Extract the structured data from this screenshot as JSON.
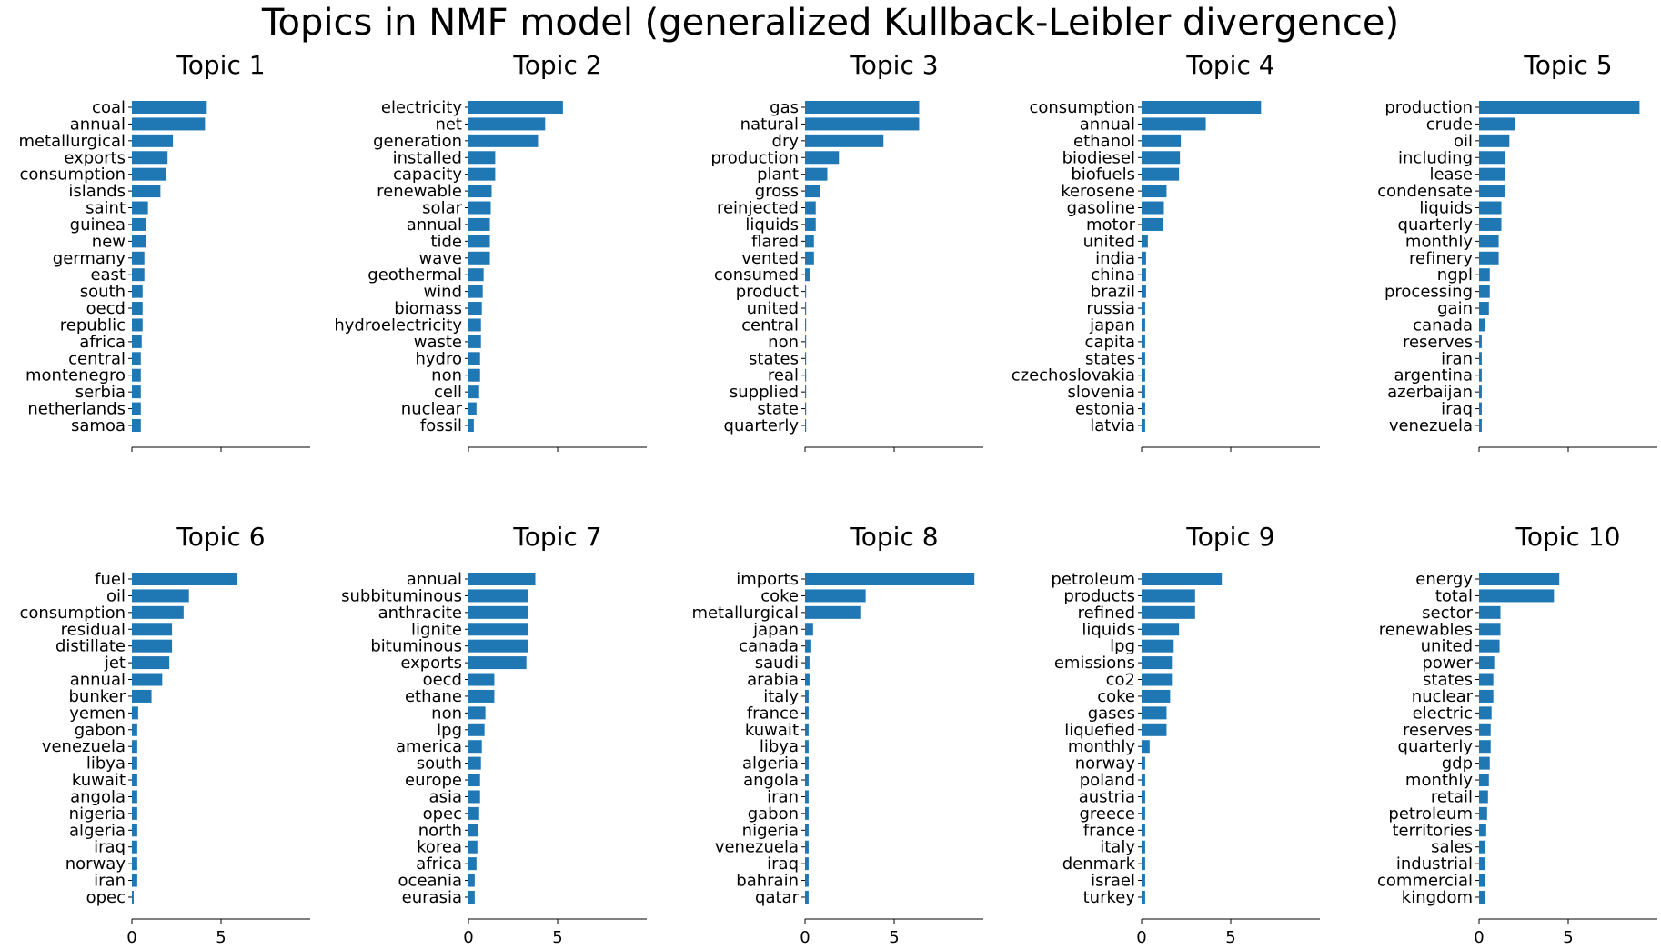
{
  "chart_data": {
    "type": "bar",
    "title": "Topics in NMF model (generalized Kullback-Leibler divergence)",
    "orientation": "horizontal",
    "xlim": [
      0,
      10
    ],
    "x_ticks": [
      0,
      5
    ],
    "bar_color": "#1f77b4",
    "panels": [
      {
        "title": "Topic 1",
        "categories": [
          "coal",
          "annual",
          "metallurgical",
          "exports",
          "consumption",
          "islands",
          "saint",
          "guinea",
          "new",
          "germany",
          "east",
          "south",
          "oecd",
          "republic",
          "africa",
          "central",
          "montenegro",
          "serbia",
          "netherlands",
          "samoa"
        ],
        "values": [
          4.2,
          4.1,
          2.3,
          2.0,
          1.9,
          1.6,
          0.9,
          0.8,
          0.8,
          0.7,
          0.7,
          0.6,
          0.6,
          0.6,
          0.55,
          0.5,
          0.5,
          0.5,
          0.5,
          0.5
        ]
      },
      {
        "title": "Topic 2",
        "categories": [
          "electricity",
          "net",
          "generation",
          "installed",
          "capacity",
          "renewable",
          "solar",
          "annual",
          "tide",
          "wave",
          "geothermal",
          "wind",
          "biomass",
          "hydroelectricity",
          "waste",
          "hydro",
          "non",
          "cell",
          "nuclear",
          "fossil"
        ],
        "values": [
          5.3,
          4.3,
          3.9,
          1.5,
          1.5,
          1.3,
          1.25,
          1.2,
          1.2,
          1.2,
          0.85,
          0.8,
          0.75,
          0.7,
          0.7,
          0.65,
          0.65,
          0.6,
          0.45,
          0.3
        ]
      },
      {
        "title": "Topic 3",
        "categories": [
          "gas",
          "natural",
          "dry",
          "production",
          "plant",
          "gross",
          "reinjected",
          "liquids",
          "flared",
          "vented",
          "consumed",
          "product",
          "united",
          "central",
          "non",
          "states",
          "real",
          "supplied",
          "state",
          "quarterly"
        ],
        "values": [
          6.4,
          6.4,
          4.4,
          1.9,
          1.25,
          0.85,
          0.6,
          0.6,
          0.5,
          0.5,
          0.3,
          0.06,
          0.06,
          0.06,
          0.06,
          0.06,
          0.06,
          0.06,
          0.06,
          0.06
        ]
      },
      {
        "title": "Topic 4",
        "categories": [
          "consumption",
          "annual",
          "ethanol",
          "biodiesel",
          "biofuels",
          "kerosene",
          "gasoline",
          "motor",
          "united",
          "india",
          "china",
          "brazil",
          "russia",
          "japan",
          "capita",
          "states",
          "czechoslovakia",
          "slovenia",
          "estonia",
          "latvia"
        ],
        "values": [
          6.7,
          3.6,
          2.2,
          2.15,
          2.1,
          1.4,
          1.25,
          1.2,
          0.35,
          0.25,
          0.25,
          0.25,
          0.2,
          0.2,
          0.2,
          0.2,
          0.2,
          0.2,
          0.2,
          0.2
        ]
      },
      {
        "title": "Topic 5",
        "categories": [
          "production",
          "crude",
          "oil",
          "including",
          "lease",
          "condensate",
          "liquids",
          "quarterly",
          "monthly",
          "refinery",
          "ngpl",
          "processing",
          "gain",
          "canada",
          "reserves",
          "iran",
          "argentina",
          "azerbaijan",
          "iraq",
          "venezuela"
        ],
        "values": [
          9.0,
          2.0,
          1.7,
          1.45,
          1.45,
          1.45,
          1.25,
          1.25,
          1.1,
          1.1,
          0.6,
          0.6,
          0.55,
          0.35,
          0.15,
          0.15,
          0.15,
          0.15,
          0.15,
          0.15
        ]
      },
      {
        "title": "Topic 6",
        "categories": [
          "fuel",
          "oil",
          "consumption",
          "residual",
          "distillate",
          "jet",
          "annual",
          "bunker",
          "yemen",
          "gabon",
          "venezuela",
          "libya",
          "kuwait",
          "angola",
          "nigeria",
          "algeria",
          "iraq",
          "norway",
          "iran",
          "opec"
        ],
        "values": [
          5.9,
          3.2,
          2.9,
          2.25,
          2.25,
          2.1,
          1.7,
          1.1,
          0.35,
          0.3,
          0.3,
          0.3,
          0.3,
          0.3,
          0.3,
          0.3,
          0.3,
          0.3,
          0.3,
          0.1
        ]
      },
      {
        "title": "Topic 7",
        "categories": [
          "annual",
          "subbituminous",
          "anthracite",
          "lignite",
          "bituminous",
          "exports",
          "oecd",
          "ethane",
          "non",
          "lpg",
          "america",
          "south",
          "europe",
          "asia",
          "opec",
          "north",
          "korea",
          "africa",
          "oceania",
          "eurasia"
        ],
        "values": [
          3.75,
          3.35,
          3.35,
          3.35,
          3.35,
          3.25,
          1.45,
          1.45,
          0.95,
          0.9,
          0.75,
          0.7,
          0.65,
          0.65,
          0.6,
          0.55,
          0.5,
          0.45,
          0.35,
          0.35
        ]
      },
      {
        "title": "Topic 8",
        "categories": [
          "imports",
          "coke",
          "metallurgical",
          "japan",
          "canada",
          "saudi",
          "arabia",
          "italy",
          "france",
          "kuwait",
          "libya",
          "algeria",
          "angola",
          "iran",
          "gabon",
          "nigeria",
          "venezuela",
          "iraq",
          "bahrain",
          "qatar"
        ],
        "values": [
          9.5,
          3.4,
          3.1,
          0.45,
          0.35,
          0.25,
          0.25,
          0.2,
          0.2,
          0.2,
          0.2,
          0.2,
          0.2,
          0.2,
          0.2,
          0.2,
          0.2,
          0.2,
          0.2,
          0.2
        ]
      },
      {
        "title": "Topic 9",
        "categories": [
          "petroleum",
          "products",
          "refined",
          "liquids",
          "lpg",
          "emissions",
          "co2",
          "coke",
          "gases",
          "liquefied",
          "monthly",
          "norway",
          "poland",
          "austria",
          "greece",
          "france",
          "italy",
          "denmark",
          "israel",
          "turkey"
        ],
        "values": [
          4.5,
          3.0,
          3.0,
          2.1,
          1.8,
          1.7,
          1.7,
          1.6,
          1.4,
          1.4,
          0.45,
          0.2,
          0.2,
          0.2,
          0.2,
          0.2,
          0.2,
          0.2,
          0.2,
          0.2
        ]
      },
      {
        "title": "Topic 10",
        "categories": [
          "energy",
          "total",
          "sector",
          "renewables",
          "united",
          "power",
          "states",
          "nuclear",
          "electric",
          "reserves",
          "quarterly",
          "gdp",
          "monthly",
          "retail",
          "petroleum",
          "territories",
          "sales",
          "industrial",
          "commercial",
          "kingdom"
        ],
        "values": [
          4.5,
          4.2,
          1.2,
          1.2,
          1.15,
          0.85,
          0.8,
          0.8,
          0.7,
          0.65,
          0.65,
          0.6,
          0.55,
          0.5,
          0.45,
          0.4,
          0.35,
          0.35,
          0.35,
          0.35
        ]
      }
    ]
  }
}
